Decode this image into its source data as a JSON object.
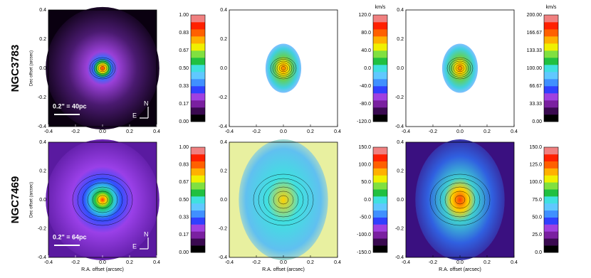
{
  "axes": {
    "xticks": [
      "-0.4",
      "-0.2",
      "0.0",
      "0.2",
      "0.4"
    ],
    "yticks": [
      "0.4",
      "0.2",
      "0.0",
      "-0.2",
      "-0.4"
    ],
    "xlabel": "R.A. offset (arcsec)",
    "ylabel": "Dec offset (arcsec)"
  },
  "compass": {
    "north": "N",
    "east": "E"
  },
  "rows": [
    {
      "label": "NGC3783",
      "scalebar": "0.2\" = 40pc",
      "colorbars": [
        {
          "ticks": [
            "1.00",
            "0.83",
            "0.67",
            "0.50",
            "0.33",
            "0.17",
            "0.00"
          ]
        },
        {
          "unit": "km/s",
          "ticks": [
            "120.0",
            "80.0",
            "40.0",
            "0.0",
            "-40.0",
            "-80.0",
            "-120.0"
          ]
        },
        {
          "unit": "km/s",
          "ticks": [
            "200.00",
            "166.67",
            "133.33",
            "100.00",
            "66.67",
            "33.33",
            "0.00"
          ]
        }
      ]
    },
    {
      "label": "NGC7469",
      "scalebar": "0.2\" = 64pc",
      "colorbars": [
        {
          "ticks": [
            "1.00",
            "0.83",
            "0.67",
            "0.50",
            "0.33",
            "0.17",
            "0.00"
          ]
        },
        {
          "ticks": [
            "150.0",
            "100.0",
            "50.0",
            "0.0",
            "-50.0",
            "-100.0",
            "-150.0"
          ]
        },
        {
          "ticks": [
            "150.0",
            "125.0",
            "100.0",
            "75.0",
            "50.0",
            "25.0",
            "0.0"
          ]
        }
      ]
    }
  ]
}
